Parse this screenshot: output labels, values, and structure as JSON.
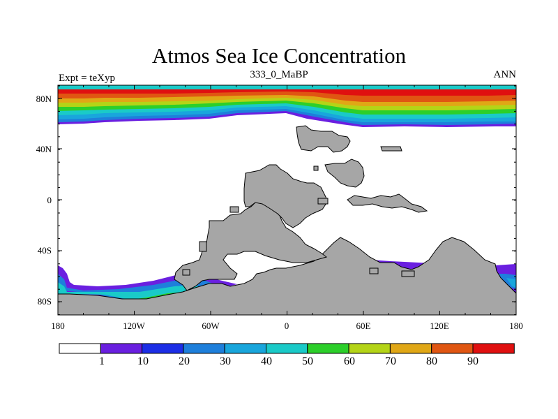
{
  "map": {
    "title": "Atmos Sea Ice Concentration",
    "subtitle": "333_0_MaBP",
    "left_label": "Expt = teXyp",
    "right_label": "ANN",
    "lat_ticks": [
      "80N",
      "40N",
      "0",
      "40S",
      "80S"
    ],
    "lon_ticks": [
      "180",
      "120W",
      "60W",
      "0",
      "60E",
      "120E",
      "180"
    ],
    "land_color": "#a6a6a6",
    "ocean_color": "#ffffff"
  },
  "colorbar": {
    "labels": [
      "1",
      "10",
      "20",
      "30",
      "40",
      "50",
      "60",
      "70",
      "80",
      "90"
    ],
    "colors": [
      "#ffffff",
      "#6a1fe0",
      "#1c2ee6",
      "#1e7fdb",
      "#19a6dc",
      "#1acac8",
      "#2ccf2a",
      "#b4d417",
      "#e0a716",
      "#e05612",
      "#e01010"
    ]
  }
}
